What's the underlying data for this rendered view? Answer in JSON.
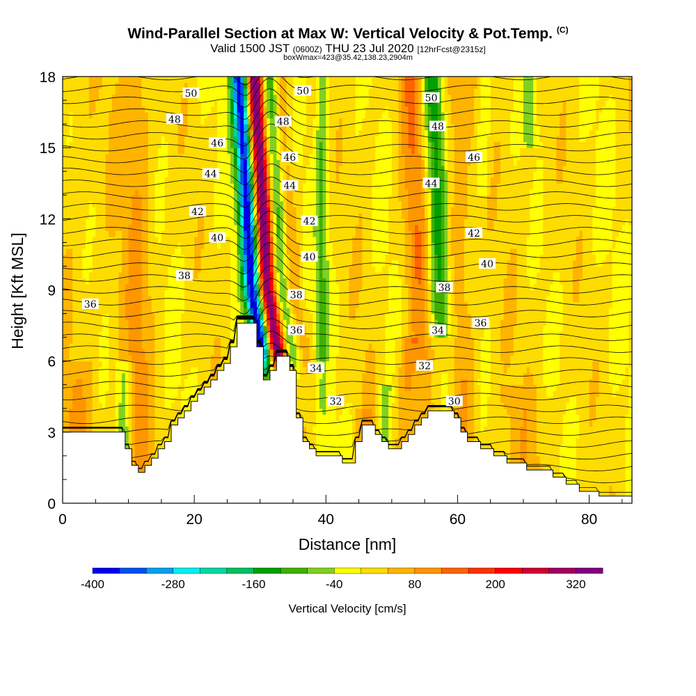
{
  "title": {
    "main": "Wind-Parallel Section at Max W: Vertical Velocity & Pot.Temp.",
    "copyright": "(C)",
    "valid_a": "Valid 1500 JST",
    "valid_utc": "(0600Z)",
    "valid_b": "THU 23 Jul 2020",
    "forecast": "[12hrFcst@2315z]",
    "box": "boxWmax=423@35.42,138.23,2904m"
  },
  "chart_data": {
    "type": "heatmap",
    "xlabel": "Distance [nm]",
    "ylabel": "Height [Kft MSL]",
    "xlim": [
      0,
      86.5
    ],
    "ylim": [
      0,
      18
    ],
    "x_ticks": [
      0,
      20,
      40,
      60,
      80
    ],
    "y_ticks": [
      0,
      3,
      6,
      9,
      12,
      15,
      18
    ],
    "colorbar": {
      "title": "Vertical Velocity [cm/s]",
      "min": -400,
      "max": 360,
      "step": 40,
      "tick_labels": [
        -400,
        -280,
        -160,
        -40,
        80,
        200,
        320
      ],
      "colors": [
        "#0000f0",
        "#0050f0",
        "#00a0f0",
        "#00f0f0",
        "#00d8a0",
        "#00c060",
        "#00a000",
        "#40b000",
        "#80d020",
        "#ffff00",
        "#ffdc00",
        "#ffb400",
        "#ff9600",
        "#ff6400",
        "#ff3200",
        "#ff0000",
        "#d00030",
        "#a00060",
        "#800080"
      ]
    },
    "terrain_profile": [
      [
        0,
        3
      ],
      [
        9.5,
        3
      ],
      [
        9.5,
        2.3
      ],
      [
        10.5,
        2.3
      ],
      [
        10.5,
        1.6
      ],
      [
        11.5,
        1.6
      ],
      [
        11.5,
        1.3
      ],
      [
        12.5,
        1.3
      ],
      [
        12.5,
        1.6
      ],
      [
        13.5,
        1.6
      ],
      [
        13.5,
        1.9
      ],
      [
        14.5,
        1.9
      ],
      [
        14.5,
        2.3
      ],
      [
        15.5,
        2.3
      ],
      [
        15.5,
        2.6
      ],
      [
        16.5,
        2.6
      ],
      [
        16.5,
        3.3
      ],
      [
        17.5,
        3.3
      ],
      [
        17.5,
        3.6
      ],
      [
        18.5,
        3.6
      ],
      [
        18.5,
        3.9
      ],
      [
        19.5,
        3.9
      ],
      [
        19.5,
        4.3
      ],
      [
        20.5,
        4.3
      ],
      [
        20.5,
        4.6
      ],
      [
        21.5,
        4.6
      ],
      [
        21.5,
        4.9
      ],
      [
        22.5,
        4.9
      ],
      [
        22.5,
        5.2
      ],
      [
        23.5,
        5.2
      ],
      [
        23.5,
        5.6
      ],
      [
        24.5,
        5.6
      ],
      [
        24.5,
        5.9
      ],
      [
        25.5,
        5.9
      ],
      [
        25.5,
        6.6
      ],
      [
        26.5,
        6.6
      ],
      [
        26.5,
        7.6
      ],
      [
        29.5,
        7.6
      ],
      [
        29.5,
        6.6
      ],
      [
        30.5,
        6.6
      ],
      [
        30.5,
        5.2
      ],
      [
        31.5,
        5.2
      ],
      [
        31.5,
        5.6
      ],
      [
        32.5,
        5.6
      ],
      [
        32.5,
        6.2
      ],
      [
        34.5,
        6.2
      ],
      [
        34.5,
        5.6
      ],
      [
        35.5,
        5.6
      ],
      [
        35.5,
        3.6
      ],
      [
        36.5,
        3.6
      ],
      [
        36.5,
        2.6
      ],
      [
        37.5,
        2.6
      ],
      [
        37.5,
        2.3
      ],
      [
        38.5,
        2.3
      ],
      [
        38.5,
        2.0
      ],
      [
        42.5,
        2.0
      ],
      [
        42.5,
        1.7
      ],
      [
        44.5,
        1.7
      ],
      [
        44.5,
        2.6
      ],
      [
        45.5,
        2.6
      ],
      [
        45.5,
        3.3
      ],
      [
        47.5,
        3.3
      ],
      [
        47.5,
        2.9
      ],
      [
        48.5,
        2.9
      ],
      [
        48.5,
        2.6
      ],
      [
        49.5,
        2.6
      ],
      [
        49.5,
        2.3
      ],
      [
        51.5,
        2.3
      ],
      [
        51.5,
        2.6
      ],
      [
        52.5,
        2.6
      ],
      [
        52.5,
        2.9
      ],
      [
        53.5,
        2.9
      ],
      [
        53.5,
        3.3
      ],
      [
        54.5,
        3.3
      ],
      [
        54.5,
        3.6
      ],
      [
        55.5,
        3.6
      ],
      [
        55.5,
        3.9
      ],
      [
        59.5,
        3.9
      ],
      [
        59.5,
        3.6
      ],
      [
        60.5,
        3.6
      ],
      [
        60.5,
        3.0
      ],
      [
        61.5,
        3.0
      ],
      [
        61.5,
        2.6
      ],
      [
        63.5,
        2.6
      ],
      [
        63.5,
        2.3
      ],
      [
        65.5,
        2.3
      ],
      [
        65.5,
        2.0
      ],
      [
        67.5,
        2.0
      ],
      [
        67.5,
        1.7
      ],
      [
        70.5,
        1.7
      ],
      [
        70.5,
        1.4
      ],
      [
        74.5,
        1.4
      ],
      [
        74.5,
        1.1
      ],
      [
        76.5,
        1.1
      ],
      [
        76.5,
        0.8
      ],
      [
        78.5,
        0.8
      ],
      [
        78.5,
        0.5
      ],
      [
        81.5,
        0.5
      ],
      [
        81.5,
        0.3
      ],
      [
        86.5,
        0.3
      ]
    ],
    "isentrope_labels": [
      {
        "text": "50",
        "x": 19.5,
        "y": 17.3
      },
      {
        "text": "48",
        "x": 17,
        "y": 16.2
      },
      {
        "text": "46",
        "x": 23.5,
        "y": 15.2
      },
      {
        "text": "44",
        "x": 22.5,
        "y": 13.9
      },
      {
        "text": "42",
        "x": 20.5,
        "y": 12.3
      },
      {
        "text": "40",
        "x": 23.5,
        "y": 11.2
      },
      {
        "text": "38",
        "x": 18.5,
        "y": 9.6
      },
      {
        "text": "36",
        "x": 4.2,
        "y": 8.4
      },
      {
        "text": "50",
        "x": 36.5,
        "y": 17.4
      },
      {
        "text": "48",
        "x": 33.5,
        "y": 16.1
      },
      {
        "text": "46",
        "x": 34.5,
        "y": 14.6
      },
      {
        "text": "44",
        "x": 34.5,
        "y": 13.4
      },
      {
        "text": "42",
        "x": 37.5,
        "y": 11.9
      },
      {
        "text": "40",
        "x": 37.5,
        "y": 10.4
      },
      {
        "text": "38",
        "x": 35.5,
        "y": 8.8
      },
      {
        "text": "36",
        "x": 35.5,
        "y": 7.3
      },
      {
        "text": "34",
        "x": 38.5,
        "y": 5.7
      },
      {
        "text": "32",
        "x": 41.5,
        "y": 4.3
      },
      {
        "text": "50",
        "x": 56,
        "y": 17.1
      },
      {
        "text": "48",
        "x": 57,
        "y": 15.9
      },
      {
        "text": "46",
        "x": 62.5,
        "y": 14.6
      },
      {
        "text": "44",
        "x": 56,
        "y": 13.5
      },
      {
        "text": "42",
        "x": 62.5,
        "y": 11.4
      },
      {
        "text": "40",
        "x": 64.5,
        "y": 10.1
      },
      {
        "text": "38",
        "x": 58,
        "y": 9.1
      },
      {
        "text": "36",
        "x": 63.5,
        "y": 7.6
      },
      {
        "text": "34",
        "x": 57,
        "y": 7.3
      },
      {
        "text": "32",
        "x": 55,
        "y": 5.8
      },
      {
        "text": "30",
        "x": 59.5,
        "y": 4.3
      }
    ]
  }
}
